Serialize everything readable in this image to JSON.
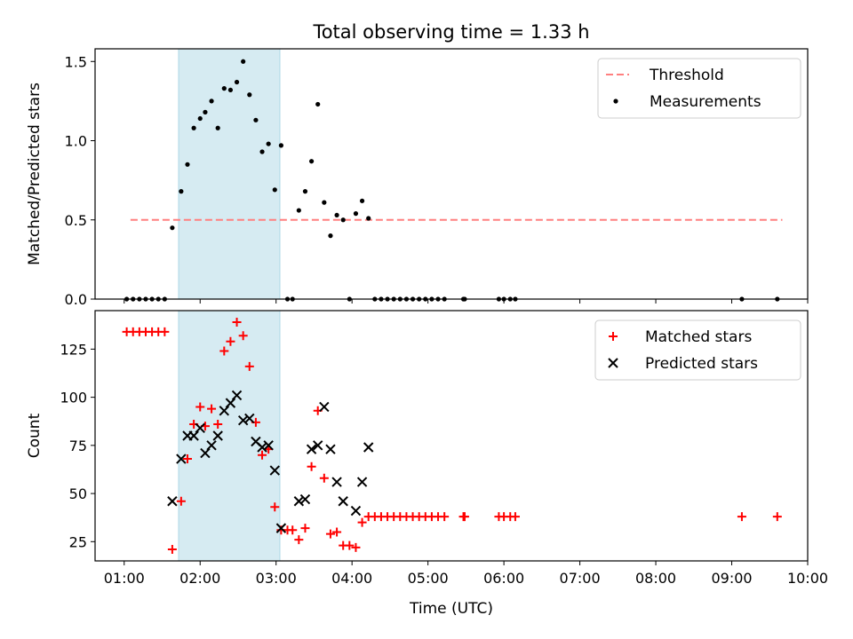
{
  "figure": {
    "title": "Total observing time = 1.33 h",
    "xlabel": "Time (UTC)"
  },
  "chart_data": [
    {
      "type": "scatter",
      "ylabel": "Matched/Predicted stars",
      "xlim": [
        "00:37",
        "10:00"
      ],
      "ylim": [
        0,
        1.58
      ],
      "yticks": [
        0,
        0.5,
        1.0,
        1.5
      ],
      "ytick_labels": [
        "0.0",
        "0.5",
        "1.0",
        "1.5"
      ],
      "shaded_interval": {
        "start": "01:43",
        "end": "03:03",
        "color": "#add8e6"
      },
      "legend": {
        "position": "upper right",
        "entries": [
          "Threshold",
          "Measurements"
        ]
      },
      "threshold": {
        "name": "Threshold",
        "x": [
          "01:05",
          "09:40"
        ],
        "y": 0.5,
        "color": "#ff7f7f",
        "style": "dashed"
      },
      "series": [
        {
          "name": "Measurements",
          "color": "#000000",
          "points": [
            [
              "01:02",
              0.0
            ],
            [
              "01:07",
              0.0
            ],
            [
              "01:12",
              0.0
            ],
            [
              "01:17",
              0.0
            ],
            [
              "01:22",
              0.0
            ],
            [
              "01:27",
              0.0
            ],
            [
              "01:32",
              0.0
            ],
            [
              "01:38",
              0.45
            ],
            [
              "01:45",
              0.68
            ],
            [
              "01:50",
              0.85
            ],
            [
              "01:55",
              1.08
            ],
            [
              "02:00",
              1.14
            ],
            [
              "02:04",
              1.18
            ],
            [
              "02:09",
              1.25
            ],
            [
              "02:14",
              1.08
            ],
            [
              "02:19",
              1.33
            ],
            [
              "02:24",
              1.32
            ],
            [
              "02:29",
              1.37
            ],
            [
              "02:34",
              1.5
            ],
            [
              "02:39",
              1.29
            ],
            [
              "02:44",
              1.13
            ],
            [
              "02:49",
              0.93
            ],
            [
              "02:54",
              0.98
            ],
            [
              "02:59",
              0.69
            ],
            [
              "03:04",
              0.97
            ],
            [
              "03:09",
              0.0
            ],
            [
              "03:13",
              0.0
            ],
            [
              "03:18",
              0.56
            ],
            [
              "03:23",
              0.68
            ],
            [
              "03:28",
              0.87
            ],
            [
              "03:33",
              1.23
            ],
            [
              "03:38",
              0.61
            ],
            [
              "03:43",
              0.4
            ],
            [
              "03:48",
              0.53
            ],
            [
              "03:53",
              0.5
            ],
            [
              "03:58",
              0.0
            ],
            [
              "04:03",
              0.54
            ],
            [
              "04:08",
              0.62
            ],
            [
              "04:13",
              0.51
            ],
            [
              "04:18",
              0.0
            ],
            [
              "04:23",
              0.0
            ],
            [
              "04:28",
              0.0
            ],
            [
              "04:33",
              0.0
            ],
            [
              "04:38",
              0.0
            ],
            [
              "04:43",
              0.0
            ],
            [
              "04:48",
              0.0
            ],
            [
              "04:53",
              0.0
            ],
            [
              "04:58",
              0.0
            ],
            [
              "05:03",
              0.0
            ],
            [
              "05:08",
              0.0
            ],
            [
              "05:13",
              0.0
            ],
            [
              "05:28",
              0.0
            ],
            [
              "05:29",
              0.0
            ],
            [
              "05:56",
              0.0
            ],
            [
              "06:00",
              0.0
            ],
            [
              "06:05",
              0.0
            ],
            [
              "06:09",
              0.0
            ],
            [
              "09:08",
              0.0
            ],
            [
              "09:36",
              0.0
            ]
          ]
        }
      ]
    },
    {
      "type": "scatter",
      "ylabel": "Count",
      "xlim": [
        "00:37",
        "10:00"
      ],
      "ylim": [
        15,
        145
      ],
      "yticks": [
        25,
        50,
        75,
        100,
        125
      ],
      "ytick_labels": [
        "25",
        "50",
        "75",
        "100",
        "125"
      ],
      "xticks": [
        "01:00",
        "02:00",
        "03:00",
        "04:00",
        "05:00",
        "06:00",
        "07:00",
        "08:00",
        "09:00",
        "10:00"
      ],
      "shaded_interval": {
        "start": "01:43",
        "end": "03:03",
        "color": "#add8e6"
      },
      "legend": {
        "position": "upper right",
        "entries": [
          "Matched stars",
          "Predicted stars"
        ]
      },
      "series": [
        {
          "name": "Matched stars",
          "color": "#ff0000",
          "marker": "plus",
          "points": [
            [
              "01:02",
              134
            ],
            [
              "01:07",
              134
            ],
            [
              "01:12",
              134
            ],
            [
              "01:17",
              134
            ],
            [
              "01:22",
              134
            ],
            [
              "01:27",
              134
            ],
            [
              "01:32",
              134
            ],
            [
              "01:38",
              21
            ],
            [
              "01:45",
              46
            ],
            [
              "01:50",
              68
            ],
            [
              "01:55",
              86
            ],
            [
              "02:00",
              95
            ],
            [
              "02:04",
              85
            ],
            [
              "02:09",
              94
            ],
            [
              "02:14",
              86
            ],
            [
              "02:19",
              124
            ],
            [
              "02:24",
              129
            ],
            [
              "02:29",
              139
            ],
            [
              "02:34",
              132
            ],
            [
              "02:39",
              116
            ],
            [
              "02:44",
              87
            ],
            [
              "02:49",
              70
            ],
            [
              "02:54",
              73
            ],
            [
              "02:59",
              43
            ],
            [
              "03:04",
              31
            ],
            [
              "03:09",
              31
            ],
            [
              "03:13",
              31
            ],
            [
              "03:18",
              26
            ],
            [
              "03:23",
              32
            ],
            [
              "03:28",
              64
            ],
            [
              "03:33",
              93
            ],
            [
              "03:38",
              58
            ],
            [
              "03:43",
              29
            ],
            [
              "03:48",
              30
            ],
            [
              "03:53",
              23
            ],
            [
              "03:58",
              23
            ],
            [
              "04:03",
              22
            ],
            [
              "04:08",
              35
            ],
            [
              "04:13",
              38
            ],
            [
              "04:18",
              38
            ],
            [
              "04:23",
              38
            ],
            [
              "04:28",
              38
            ],
            [
              "04:33",
              38
            ],
            [
              "04:38",
              38
            ],
            [
              "04:43",
              38
            ],
            [
              "04:48",
              38
            ],
            [
              "04:53",
              38
            ],
            [
              "04:58",
              38
            ],
            [
              "05:03",
              38
            ],
            [
              "05:08",
              38
            ],
            [
              "05:13",
              38
            ],
            [
              "05:28",
              38
            ],
            [
              "05:29",
              38
            ],
            [
              "05:56",
              38
            ],
            [
              "06:00",
              38
            ],
            [
              "06:05",
              38
            ],
            [
              "06:09",
              38
            ],
            [
              "09:08",
              38
            ],
            [
              "09:36",
              38
            ]
          ]
        },
        {
          "name": "Predicted stars",
          "color": "#000000",
          "marker": "cross",
          "points": [
            [
              "01:38",
              46
            ],
            [
              "01:45",
              68
            ],
            [
              "01:50",
              80
            ],
            [
              "01:55",
              80
            ],
            [
              "02:00",
              84
            ],
            [
              "02:04",
              71
            ],
            [
              "02:09",
              75
            ],
            [
              "02:14",
              80
            ],
            [
              "02:19",
              93
            ],
            [
              "02:24",
              97
            ],
            [
              "02:29",
              101
            ],
            [
              "02:34",
              88
            ],
            [
              "02:39",
              89
            ],
            [
              "02:44",
              77
            ],
            [
              "02:49",
              74
            ],
            [
              "02:54",
              75
            ],
            [
              "02:59",
              62
            ],
            [
              "03:04",
              32
            ],
            [
              "03:18",
              46
            ],
            [
              "03:23",
              47
            ],
            [
              "03:28",
              73
            ],
            [
              "03:33",
              75
            ],
            [
              "03:38",
              95
            ],
            [
              "03:43",
              73
            ],
            [
              "03:48",
              56
            ],
            [
              "03:53",
              46
            ],
            [
              "04:03",
              41
            ],
            [
              "04:08",
              56
            ],
            [
              "04:13",
              74
            ]
          ]
        }
      ]
    }
  ]
}
